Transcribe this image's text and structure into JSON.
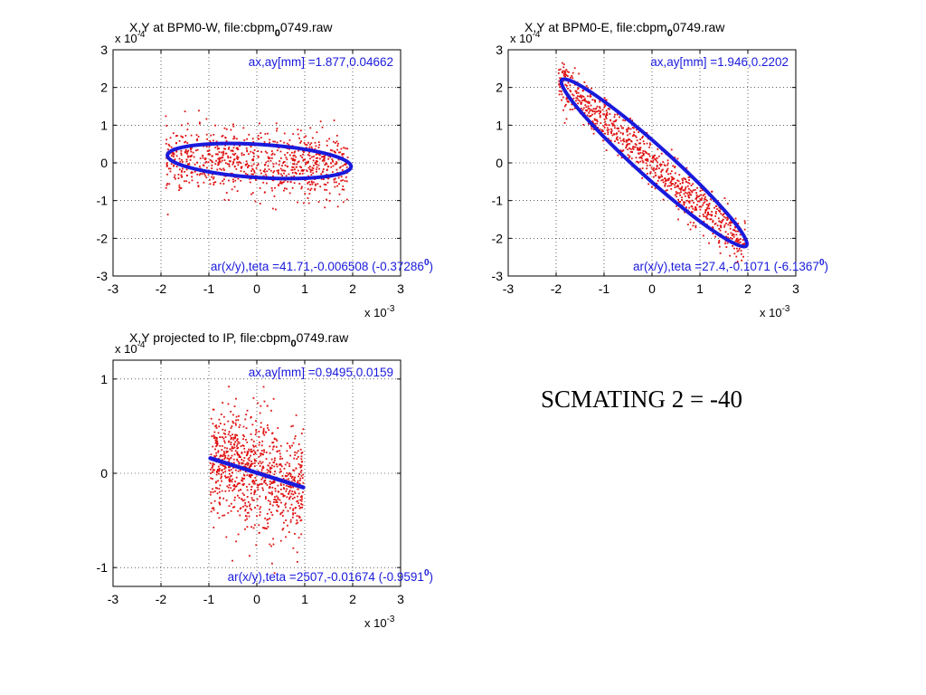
{
  "caption": "SCMATING 2 = -40",
  "colors": {
    "scatter": "#e01010",
    "fit": "#1a1adc",
    "annotation": "#1a1adc"
  },
  "chart_data": [
    {
      "type": "scatter",
      "id": "bpm0w",
      "title_pre": "X,Y at BPM0-W, file:cbpm",
      "title_sub": "0",
      "title_post": "0749.raw",
      "x_exp": "x 10",
      "x_exp_pow": "-3",
      "y_exp": "x 10",
      "y_exp_pow": "-4",
      "xlim": [
        -3,
        3
      ],
      "ylim": [
        -3,
        3
      ],
      "xticks": [
        -3,
        -2,
        -1,
        0,
        1,
        2,
        3
      ],
      "yticks": [
        -3,
        -2,
        -1,
        0,
        1,
        2,
        3
      ],
      "xtick_labels": [
        "-3",
        "-2",
        "-1",
        "0",
        "1",
        "2",
        "3"
      ],
      "ytick_labels": [
        "-3",
        "-2",
        "-1",
        "0",
        "1",
        "2",
        "3"
      ],
      "grid": true,
      "annotation_top": "ax,ay[mm] =1.877,0.04662",
      "annotation_bottom_pre": "ar(x/y),teta =41.71,-0.006508 (-0.37286",
      "annotation_bottom_sup": "0",
      "annotation_bottom_post": ")",
      "cloud": {
        "cx": 0,
        "cy": 0,
        "half_x": 1.9,
        "sigma_y": 0.42,
        "tilt": -0.05,
        "count": 850
      },
      "fit": {
        "type": "ellipse",
        "cx": 0.05,
        "cy": 0.05,
        "a": 1.92,
        "b": 0.44,
        "tilt": -0.08
      }
    },
    {
      "type": "scatter",
      "id": "bpm0e",
      "title_pre": "X,Y at BPM0-E, file:cbpm",
      "title_sub": "0",
      "title_post": "0749.raw",
      "x_exp": "x 10",
      "x_exp_pow": "-3",
      "y_exp": "x 10",
      "y_exp_pow": "-4",
      "xlim": [
        -3,
        3
      ],
      "ylim": [
        -3,
        3
      ],
      "xticks": [
        -3,
        -2,
        -1,
        0,
        1,
        2,
        3
      ],
      "yticks": [
        -3,
        -2,
        -1,
        0,
        1,
        2,
        3
      ],
      "xtick_labels": [
        "-3",
        "-2",
        "-1",
        "0",
        "1",
        "2",
        "3"
      ],
      "ytick_labels": [
        "-3",
        "-2",
        "-1",
        "0",
        "1",
        "2",
        "3"
      ],
      "grid": true,
      "annotation_top": "ax,ay[mm] =1.946,0.2202",
      "annotation_bottom_pre": "ar(x/y),teta =27.4,-0.1071 (-6.1367",
      "annotation_bottom_sup": "0",
      "annotation_bottom_post": ")",
      "cloud": {
        "cx": 0,
        "cy": 0,
        "half_x": 1.95,
        "sigma_y": 0.3,
        "tilt": -1.13,
        "count": 900
      },
      "fit": {
        "type": "ellipse",
        "cx": 0,
        "cy": 0,
        "a": 2.1,
        "b": 0.42,
        "angle_from": [
          -1.88,
          2.2
        ],
        "angle_to": [
          1.97,
          -2.2
        ]
      }
    },
    {
      "type": "scatter",
      "id": "ip",
      "title_pre": "X,Y projected to IP, file:cbpm",
      "title_sub": "0",
      "title_post": "0749.raw",
      "x_exp": "x 10",
      "x_exp_pow": "-3",
      "y_exp": "x 10",
      "y_exp_pow": "-4",
      "xlim": [
        -3,
        3
      ],
      "ylim": [
        -1.2,
        1.2
      ],
      "xticks": [
        -3,
        -2,
        -1,
        0,
        1,
        2,
        3
      ],
      "yticks": [
        -1,
        0,
        1
      ],
      "xtick_labels": [
        "-3",
        "-2",
        "-1",
        "0",
        "1",
        "2",
        "3"
      ],
      "ytick_labels": [
        "-1",
        "0",
        "1"
      ],
      "grid": true,
      "annotation_top": "ax,ay[mm] =0.9495,0.0159",
      "annotation_bottom_pre": "ar(x/y),teta =2507,-0.01674 (-0.9591",
      "annotation_bottom_sup": "0",
      "annotation_bottom_post": ")",
      "cloud": {
        "cx": 0,
        "cy": 0,
        "half_x": 0.97,
        "sigma_y": 0.3,
        "tilt": -0.17,
        "count": 900
      },
      "fit": {
        "type": "line",
        "x1": -0.97,
        "y1": 0.16,
        "x2": 0.97,
        "y2": -0.15
      }
    }
  ]
}
